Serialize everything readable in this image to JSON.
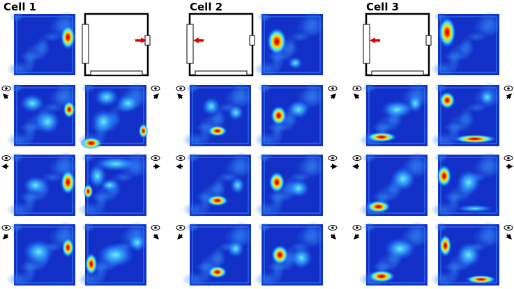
{
  "panels": [
    {
      "title": "Cell 1"
    },
    {
      "title": "Cell 2"
    },
    {
      "title": "Cell 3"
    }
  ]
}
